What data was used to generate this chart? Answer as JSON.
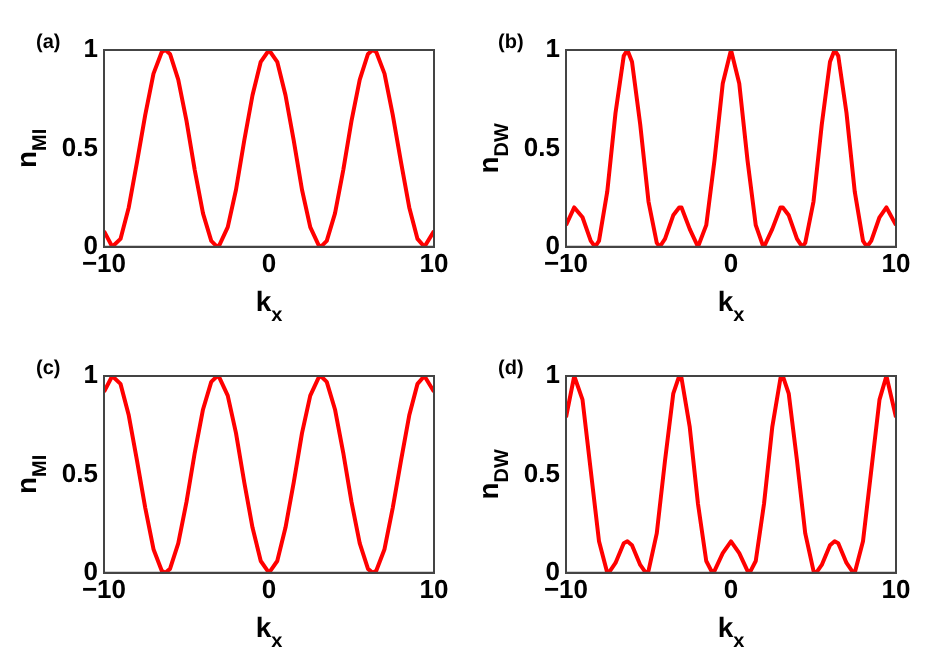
{
  "chart_data": [
    {
      "type": "line",
      "title": "(a)",
      "xlabel": "k$_{x}$",
      "ylabel": "n$_{MI}$",
      "xlim": [
        -10,
        10
      ],
      "xticks": [
        -10,
        0,
        10
      ],
      "ylim": [
        0,
        1
      ],
      "yticks": [
        0,
        0.5,
        1
      ],
      "marker": "none",
      "series": [
        {
          "color": "#ff0000",
          "x": [
            -10,
            -9.5,
            -9.42,
            -9,
            -8.5,
            -8,
            -7.5,
            -7,
            -6.5,
            -6.28,
            -6,
            -5.5,
            -5,
            -4.5,
            -4,
            -3.5,
            -3.14,
            -3,
            -2.5,
            -2,
            -1.5,
            -1,
            -0.5,
            0,
            0.5,
            1,
            1.5,
            2,
            2.5,
            3,
            3.14,
            3.5,
            4,
            4.5,
            5,
            5.5,
            6,
            6.28,
            6.5,
            7,
            7.5,
            8,
            8.5,
            9,
            9.42,
            9.5,
            10
          ],
          "values": [
            0.08,
            0,
            0,
            0.04,
            0.2,
            0.43,
            0.67,
            0.88,
            0.99,
            1,
            0.98,
            0.85,
            0.64,
            0.39,
            0.17,
            0.03,
            0,
            0.01,
            0.1,
            0.29,
            0.54,
            0.77,
            0.94,
            1,
            0.94,
            0.77,
            0.54,
            0.29,
            0.1,
            0.01,
            0,
            0.03,
            0.17,
            0.39,
            0.64,
            0.85,
            0.98,
            1,
            0.99,
            0.88,
            0.67,
            0.43,
            0.2,
            0.04,
            0,
            0,
            0.08
          ]
        }
      ]
    },
    {
      "type": "line",
      "title": "(b)",
      "xlabel": "k$_{x}$",
      "ylabel": "n$_{DW}$",
      "xlim": [
        -10,
        10
      ],
      "xticks": [
        -10,
        0,
        10
      ],
      "ylim": [
        0,
        1
      ],
      "yticks": [
        0,
        0.5,
        1
      ],
      "marker": "none",
      "series": [
        {
          "color": "#ff0000",
          "x": [
            -10,
            -9.5,
            -9.42,
            -9,
            -8.5,
            -8.24,
            -8,
            -7.5,
            -7,
            -6.5,
            -6.28,
            -6,
            -5.5,
            -5,
            -4.5,
            -4.32,
            -4,
            -3.5,
            -3.14,
            -3,
            -2.5,
            -2,
            -1.96,
            -1.5,
            -1,
            -0.5,
            0,
            0.5,
            1,
            1.5,
            1.96,
            2,
            2.5,
            3,
            3.14,
            3.5,
            4,
            4.32,
            4.5,
            5,
            5.5,
            6,
            6.28,
            6.5,
            7,
            7.5,
            8,
            8.24,
            8.5,
            9,
            9.42,
            9.5,
            10
          ],
          "values": [
            0.11,
            0.2,
            0.2,
            0.15,
            0.03,
            0,
            0.03,
            0.28,
            0.68,
            0.97,
            1,
            0.94,
            0.62,
            0.23,
            0.02,
            0,
            0.04,
            0.16,
            0.2,
            0.2,
            0.09,
            0,
            0,
            0.11,
            0.44,
            0.83,
            1,
            0.83,
            0.44,
            0.11,
            0,
            0,
            0.09,
            0.2,
            0.2,
            0.16,
            0.04,
            0,
            0.02,
            0.23,
            0.62,
            0.94,
            1,
            0.97,
            0.68,
            0.28,
            0.03,
            0,
            0.03,
            0.15,
            0.2,
            0.2,
            0.11
          ]
        }
      ]
    },
    {
      "type": "line",
      "title": "(c)",
      "xlabel": "k$_{x}$",
      "ylabel": "n$_{MI}$",
      "xlim": [
        -10,
        10
      ],
      "xticks": [
        -10,
        0,
        10
      ],
      "ylim": [
        0,
        1
      ],
      "yticks": [
        0,
        0.5,
        1
      ],
      "marker": "none",
      "series": [
        {
          "color": "#ff0000",
          "x": [
            -10,
            -9.5,
            -9.42,
            -9,
            -8.5,
            -8,
            -7.5,
            -7,
            -6.5,
            -6.28,
            -6,
            -5.5,
            -5,
            -4.5,
            -4,
            -3.5,
            -3.14,
            -3,
            -2.5,
            -2,
            -1.5,
            -1,
            -0.5,
            0,
            0.5,
            1,
            1.5,
            2,
            2.5,
            3,
            3.14,
            3.5,
            4,
            4.5,
            5,
            5.5,
            6,
            6.28,
            6.5,
            7,
            7.5,
            8,
            8.5,
            9,
            9.42,
            9.5,
            10
          ],
          "values": [
            0.92,
            1,
            1,
            0.96,
            0.8,
            0.57,
            0.33,
            0.12,
            0.01,
            0,
            0.02,
            0.15,
            0.36,
            0.61,
            0.83,
            0.97,
            1,
            0.99,
            0.9,
            0.71,
            0.46,
            0.23,
            0.06,
            0,
            0.06,
            0.23,
            0.46,
            0.71,
            0.9,
            0.99,
            1,
            0.97,
            0.83,
            0.61,
            0.36,
            0.15,
            0.02,
            0,
            0.01,
            0.12,
            0.33,
            0.57,
            0.8,
            0.96,
            1,
            1,
            0.92
          ]
        }
      ]
    },
    {
      "type": "line",
      "title": "(d)",
      "xlabel": "k$_{x}$",
      "ylabel": "n$_{DW}$",
      "xlim": [
        -10,
        10
      ],
      "xticks": [
        -10,
        0,
        10
      ],
      "ylim": [
        0,
        1
      ],
      "yticks": [
        0,
        0.5,
        1
      ],
      "marker": "none",
      "series": [
        {
          "color": "#ff0000",
          "x": [
            -10,
            -9.5,
            -9.42,
            -9,
            -8.5,
            -8,
            -7.5,
            -7.41,
            -7,
            -6.5,
            -6.28,
            -6,
            -5.5,
            -5.16,
            -5,
            -4.5,
            -4,
            -3.5,
            -3.14,
            -3,
            -2.5,
            -2,
            -1.5,
            -1.13,
            -1,
            -0.5,
            0,
            0.5,
            1,
            1.13,
            1.5,
            2,
            2.5,
            3,
            3.14,
            3.5,
            4,
            4.5,
            5,
            5.16,
            5.5,
            6,
            6.28,
            6.5,
            7,
            7.41,
            7.5,
            8,
            8.5,
            9,
            9.42,
            9.5,
            10
          ],
          "values": [
            0.79,
            1,
            1,
            0.88,
            0.52,
            0.16,
            0,
            0,
            0.05,
            0.15,
            0.16,
            0.14,
            0.04,
            0,
            0.01,
            0.2,
            0.57,
            0.91,
            1,
            0.99,
            0.74,
            0.35,
            0.06,
            0,
            0.01,
            0.1,
            0.16,
            0.1,
            0.01,
            0,
            0.06,
            0.35,
            0.74,
            0.99,
            1,
            0.91,
            0.57,
            0.2,
            0.01,
            0,
            0.04,
            0.14,
            0.16,
            0.15,
            0.05,
            0,
            0,
            0.16,
            0.52,
            0.88,
            1,
            1,
            0.79
          ]
        }
      ]
    }
  ]
}
